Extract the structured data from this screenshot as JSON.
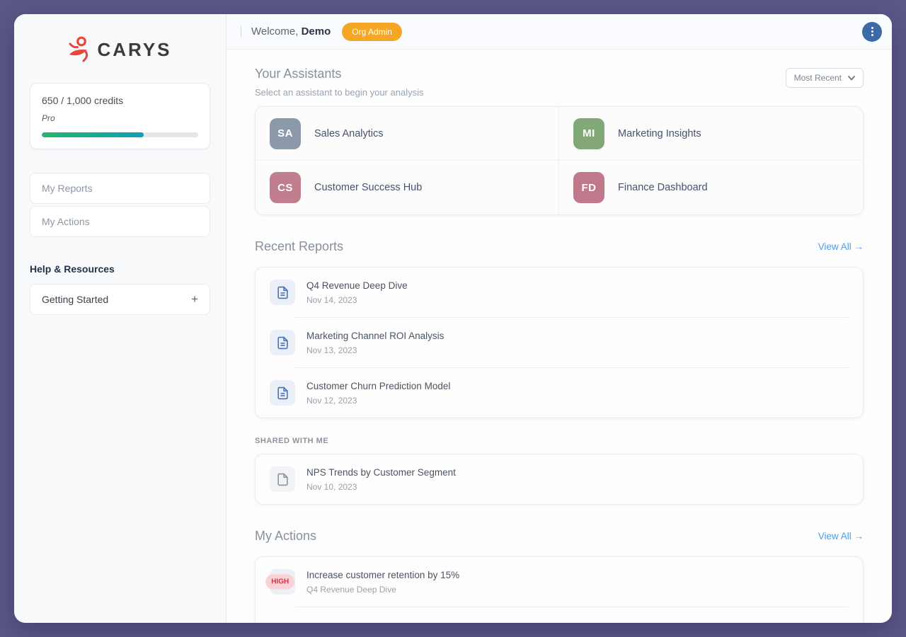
{
  "colors": {
    "frame_bg": "#5b5887",
    "accent_link": "#4a9df0",
    "badge_orange": "#f5a623",
    "logo_red": "#e8473d",
    "kebab_button_blue": "#3d69a4",
    "doc_icon_blue": "#4a72ba",
    "doc_icon_gray": "#8b949d",
    "progress_gradient_start": "#27b56a",
    "progress_gradient_end": "#0da0b8",
    "priority_high_bg": "#f8d2d7",
    "priority_high_text": "#cb3944"
  },
  "icons": {
    "plus": "+"
  },
  "sidebar": {
    "logo_text": "CARYS",
    "credits": {
      "text": "650 / 1,000 credits",
      "plan": "Pro",
      "used": 650,
      "total": 1000
    },
    "nav": [
      {
        "label": "My Reports"
      },
      {
        "label": "My Actions"
      }
    ],
    "help_heading": "Help & Resources",
    "help_item": {
      "label": "Getting Started"
    }
  },
  "header": {
    "welcome_prefix": "Welcome,",
    "username": "Demo",
    "badge": "Org Admin"
  },
  "assistants": {
    "title": "Your Assistants",
    "subtitle": "Select an assistant to begin your analysis",
    "sort_selected": "Most Recent",
    "items": [
      {
        "initials": "SA",
        "name": "Sales Analytics",
        "color": "#8b99aa"
      },
      {
        "initials": "MI",
        "name": "Marketing Insights",
        "color": "#82a878"
      },
      {
        "initials": "CS",
        "name": "Customer Success Hub",
        "color": "#c07e8e"
      },
      {
        "initials": "FD",
        "name": "Finance Dashboard",
        "color": "#c0798b"
      }
    ]
  },
  "recent_reports": {
    "title": "Recent Reports",
    "view_all": "View All →",
    "items": [
      {
        "title": "Q4 Revenue Deep Dive",
        "date": "Nov 14, 2023"
      },
      {
        "title": "Marketing Channel ROI Analysis",
        "date": "Nov 13, 2023"
      },
      {
        "title": "Customer Churn Prediction Model",
        "date": "Nov 12, 2023"
      }
    ],
    "shared_heading": "SHARED WITH ME",
    "shared_items": [
      {
        "title": "NPS Trends by Customer Segment",
        "date": "Nov 10, 2023"
      }
    ]
  },
  "my_actions": {
    "title": "My Actions",
    "view_all": "View All →",
    "items": [
      {
        "priority": "HIGH",
        "title": "Increase customer retention by 15%",
        "source": "Q4 Revenue Deep Dive"
      }
    ]
  }
}
